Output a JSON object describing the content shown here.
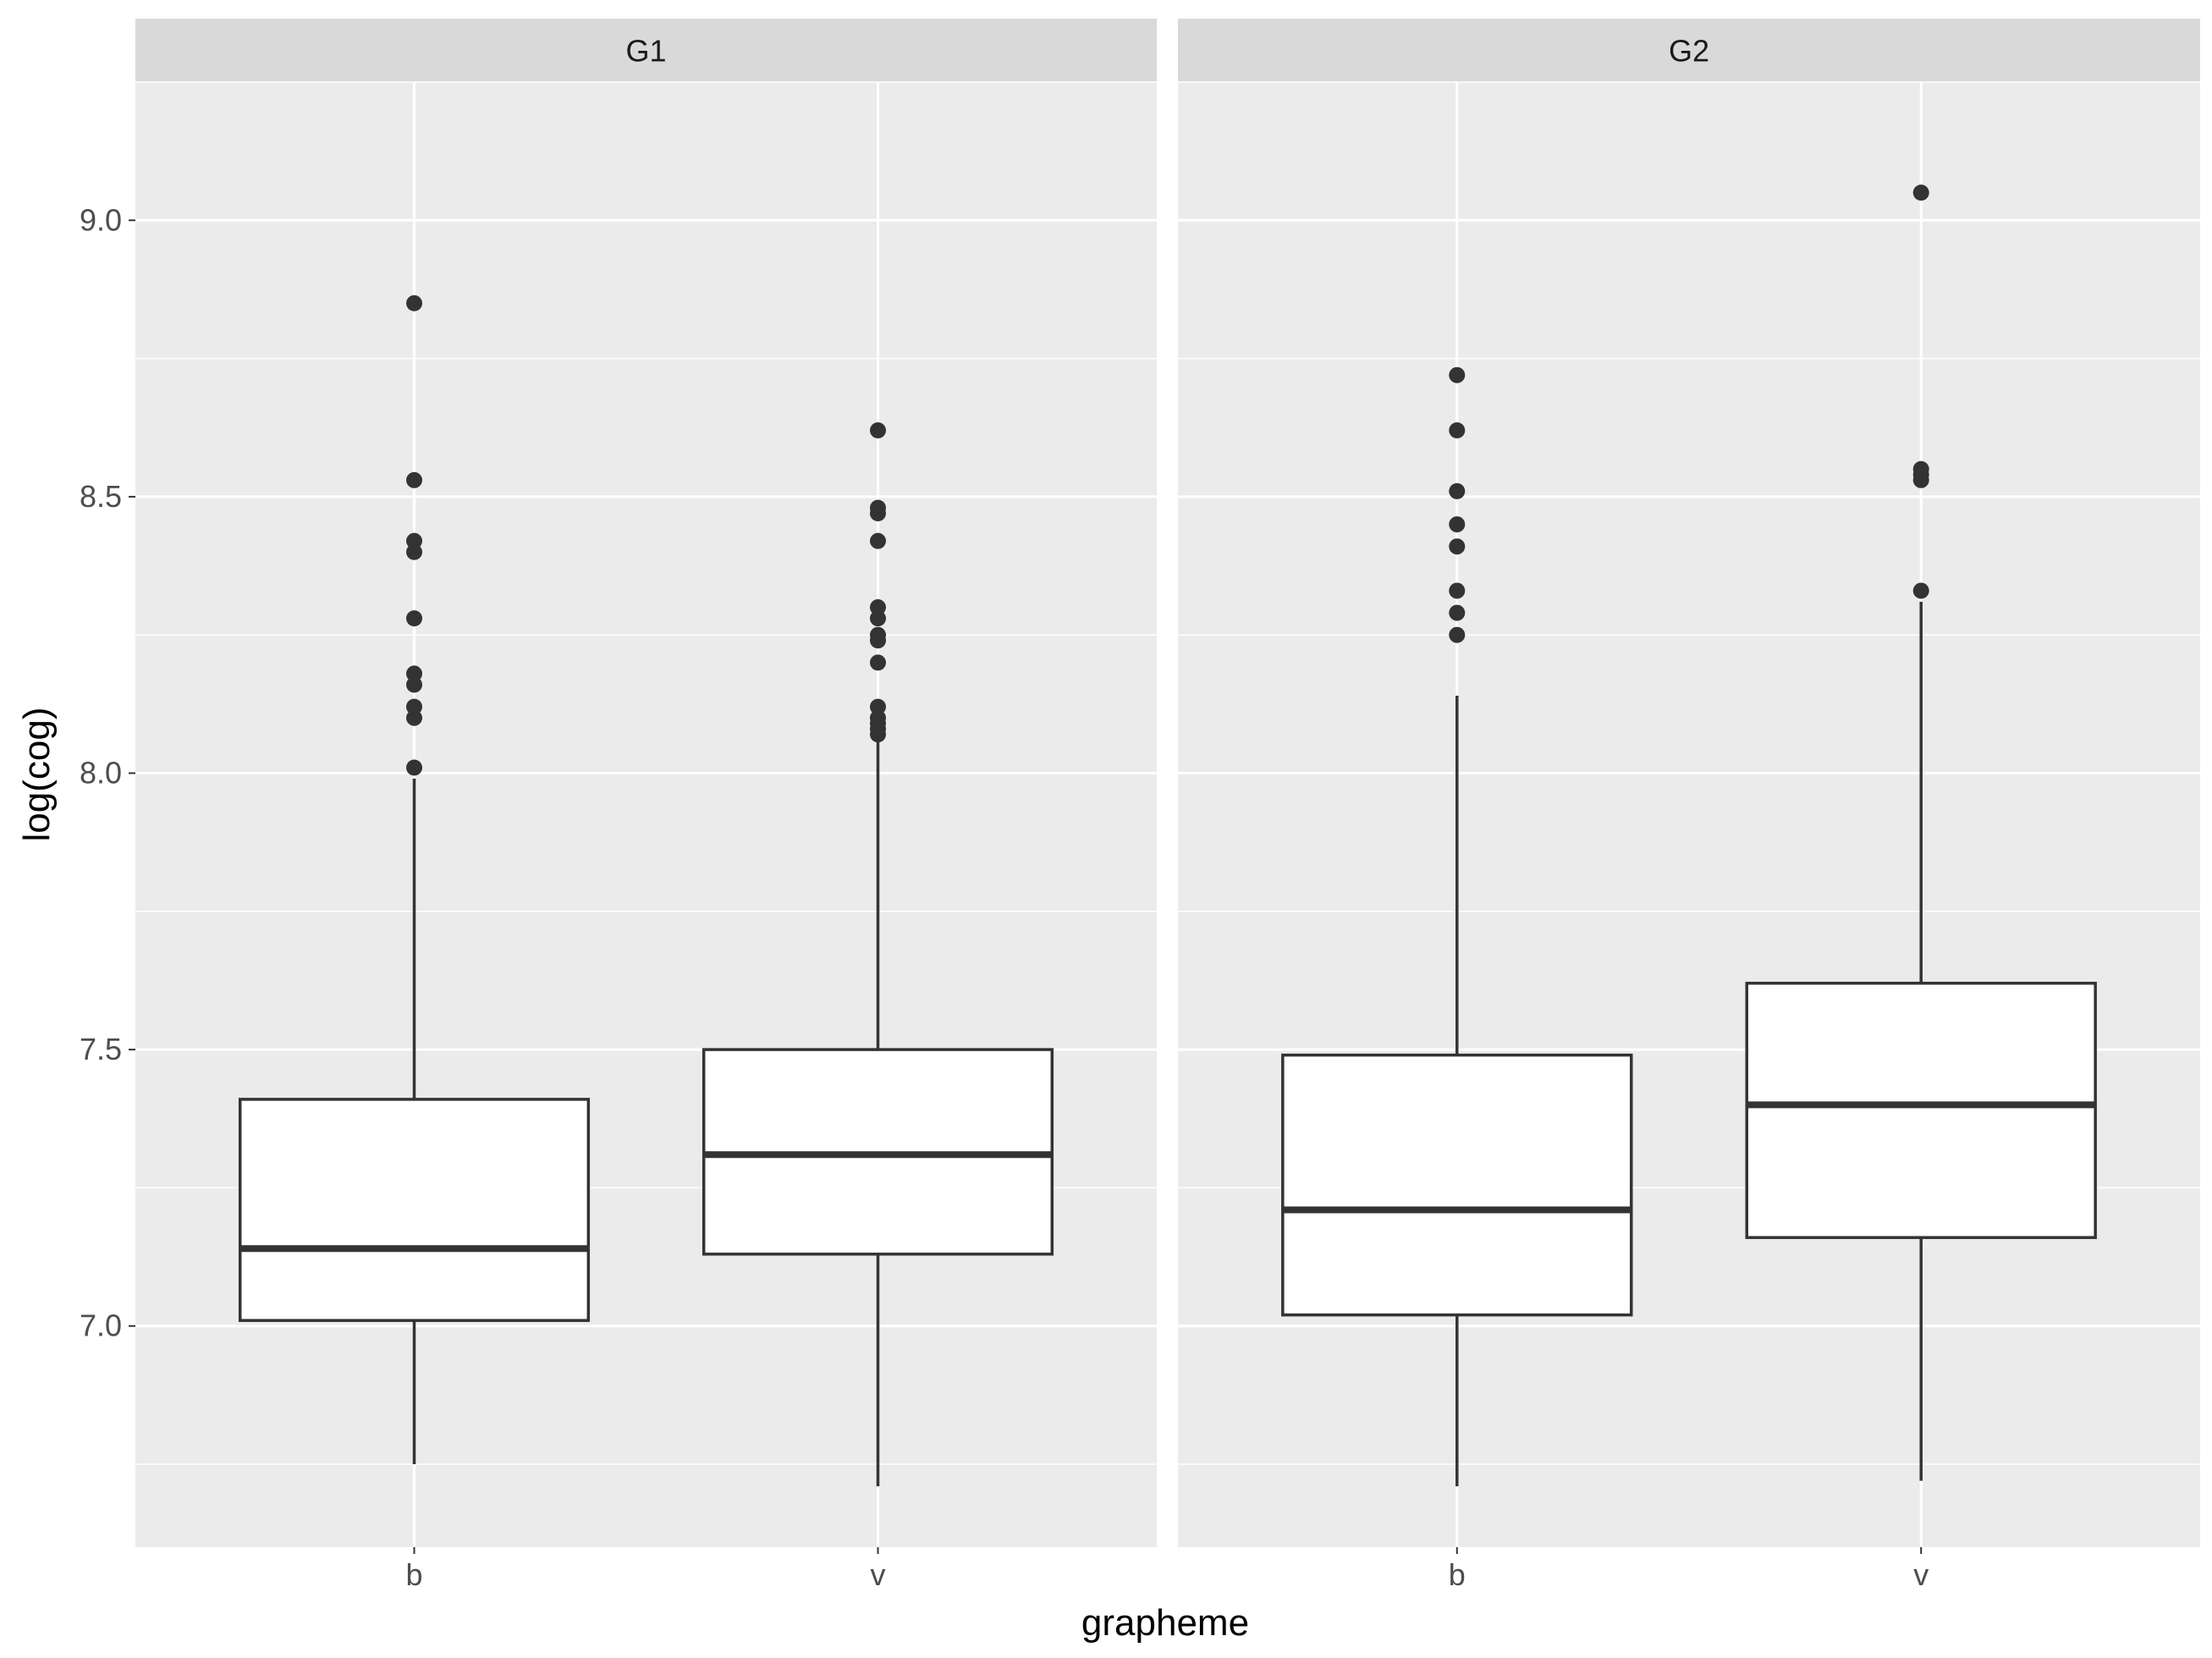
{
  "chart_data": {
    "type": "boxplot",
    "xlabel": "grapheme",
    "ylabel": "log(cog)",
    "ylim": [
      6.6,
      9.25
    ],
    "y_ticks": [
      7.0,
      7.5,
      8.0,
      8.5,
      9.0
    ],
    "y_tick_labels": [
      "7.0",
      "7.5",
      "8.0",
      "8.5",
      "9.0"
    ],
    "categories": [
      "b",
      "v"
    ],
    "grid": true,
    "colors": {
      "panel_bg": "#ebebeb",
      "strip_bg": "#d9d9d9",
      "grid": "#ffffff",
      "box_fill": "#ffffff",
      "box_line": "#333333",
      "outlier": "#333333"
    },
    "facets": [
      {
        "label": "G1",
        "boxes": [
          {
            "category": "b",
            "whisker_low": 6.75,
            "q1": 7.01,
            "median": 7.14,
            "q3": 7.41,
            "whisker_high": 7.99,
            "outliers": [
              8.01,
              8.1,
              8.12,
              8.16,
              8.18,
              8.28,
              8.4,
              8.42,
              8.53,
              8.85
            ]
          },
          {
            "category": "v",
            "whisker_low": 6.71,
            "q1": 7.13,
            "median": 7.31,
            "q3": 7.5,
            "whisker_high": 8.06,
            "outliers": [
              8.07,
              8.08,
              8.09,
              8.1,
              8.12,
              8.2,
              8.24,
              8.25,
              8.28,
              8.3,
              8.42,
              8.47,
              8.48,
              8.62
            ]
          }
        ]
      },
      {
        "label": "G2",
        "boxes": [
          {
            "category": "b",
            "whisker_low": 6.71,
            "q1": 7.02,
            "median": 7.21,
            "q3": 7.49,
            "whisker_high": 8.14,
            "outliers": [
              8.25,
              8.29,
              8.33,
              8.41,
              8.45,
              8.51,
              8.62,
              8.72
            ]
          },
          {
            "category": "v",
            "whisker_low": 6.72,
            "q1": 7.16,
            "median": 7.4,
            "q3": 7.62,
            "whisker_high": 8.31,
            "outliers": [
              8.33,
              8.53,
              8.54,
              8.55,
              9.05
            ]
          }
        ]
      }
    ]
  }
}
